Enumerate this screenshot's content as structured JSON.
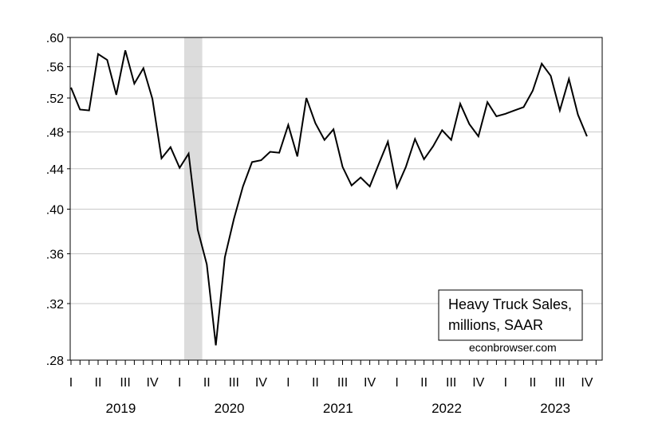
{
  "chart_data": {
    "type": "line",
    "title": "",
    "xlabel": "",
    "ylabel": "",
    "y_scale": "log",
    "ylim": [
      0.28,
      0.6
    ],
    "y_ticks": [
      0.28,
      0.32,
      0.36,
      0.4,
      0.44,
      0.48,
      0.52,
      0.56,
      0.6
    ],
    "y_tick_labels": [
      ".28",
      ".32",
      ".36",
      ".40",
      ".44",
      ".48",
      ".52",
      ".56",
      ".60"
    ],
    "x_start": "2019-01",
    "quarter_labels": [
      "I",
      "II",
      "III",
      "IV",
      "I",
      "II",
      "III",
      "IV",
      "I",
      "II",
      "III",
      "IV",
      "I",
      "II",
      "III",
      "IV",
      "I",
      "II",
      "III",
      "IV"
    ],
    "year_labels": [
      "2019",
      "2020",
      "2021",
      "2022",
      "2023"
    ],
    "recession_shading": {
      "start": "2020-02",
      "end": "2020-04"
    },
    "grid": true,
    "legend_position": "bottom-right",
    "annotation_lines": [
      "Heavy Truck Sales,",
      "millions, SAAR"
    ],
    "watermark": "econbrowser.com",
    "series": [
      {
        "name": "Heavy Truck Sales, millions, SAAR",
        "color": "#000000",
        "x": [
          "2019-01",
          "2019-02",
          "2019-03",
          "2019-04",
          "2019-05",
          "2019-06",
          "2019-07",
          "2019-08",
          "2019-09",
          "2019-10",
          "2019-11",
          "2019-12",
          "2020-01",
          "2020-02",
          "2020-03",
          "2020-04",
          "2020-05",
          "2020-06",
          "2020-07",
          "2020-08",
          "2020-09",
          "2020-10",
          "2020-11",
          "2020-12",
          "2021-01",
          "2021-02",
          "2021-03",
          "2021-04",
          "2021-05",
          "2021-06",
          "2021-07",
          "2021-08",
          "2021-09",
          "2021-10",
          "2021-11",
          "2021-12",
          "2022-01",
          "2022-02",
          "2022-03",
          "2022-04",
          "2022-05",
          "2022-06",
          "2022-07",
          "2022-08",
          "2022-09",
          "2022-10",
          "2022-11",
          "2022-12",
          "2023-01",
          "2023-02",
          "2023-03",
          "2023-04",
          "2023-05",
          "2023-06",
          "2023-07",
          "2023-08",
          "2023-09",
          "2023-10"
        ],
        "values": [
          0.533,
          0.506,
          0.505,
          0.577,
          0.569,
          0.524,
          0.582,
          0.538,
          0.558,
          0.519,
          0.451,
          0.463,
          0.441,
          0.456,
          0.381,
          0.351,
          0.29,
          0.357,
          0.391,
          0.422,
          0.447,
          0.449,
          0.458,
          0.457,
          0.488,
          0.453,
          0.52,
          0.49,
          0.471,
          0.483,
          0.442,
          0.423,
          0.431,
          0.422,
          0.445,
          0.469,
          0.421,
          0.442,
          0.472,
          0.45,
          0.464,
          0.482,
          0.471,
          0.513,
          0.489,
          0.475,
          0.515,
          0.498,
          0.501,
          0.505,
          0.509,
          0.529,
          0.564,
          0.548,
          0.505,
          0.544,
          0.5,
          0.475
        ]
      }
    ]
  }
}
